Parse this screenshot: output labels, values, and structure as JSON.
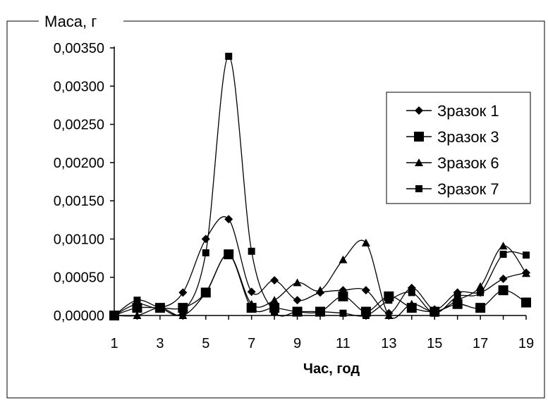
{
  "chart_data": {
    "type": "line",
    "title": "Маса, г",
    "xlabel": "Час, год",
    "ylabel": "",
    "ylim": [
      0,
      0.0035
    ],
    "xlim": [
      1,
      19
    ],
    "x": [
      1,
      2,
      3,
      4,
      5,
      6,
      7,
      8,
      9,
      10,
      11,
      12,
      13,
      14,
      15,
      16,
      17,
      18,
      19
    ],
    "x_ticks": [
      "1",
      "3",
      "5",
      "7",
      "9",
      "11",
      "13",
      "15",
      "17",
      "19"
    ],
    "y_ticks": [
      "0,00000",
      "0,00050",
      "0,00100",
      "0,00150",
      "0,00200",
      "0,00250",
      "0,00300",
      "0,00350"
    ],
    "grid": false,
    "legend_position": "right",
    "series": [
      {
        "name": "Зразок 1",
        "marker": "diamond",
        "marker_size": "small",
        "values": [
          0.0,
          0.00015,
          0.0001,
          0.0003,
          0.001,
          0.00126,
          0.00031,
          0.00046,
          0.0002,
          0.0003,
          0.00033,
          0.00033,
          3e-05,
          0.00036,
          8e-05,
          0.0003,
          0.0003,
          0.00048,
          0.00056
        ]
      },
      {
        "name": "Зразок 3",
        "marker": "square",
        "marker_size": "large",
        "values": [
          0.0,
          0.0001,
          0.0001,
          0.0001,
          0.0003,
          0.0008,
          0.0001,
          0.0001,
          5e-05,
          5e-05,
          0.00025,
          5e-05,
          0.00025,
          0.0001,
          5e-05,
          0.00015,
          0.0001,
          0.00033,
          0.00017
        ]
      },
      {
        "name": "Зразок 6",
        "marker": "triangle",
        "marker_size": "small",
        "values": [
          0.0,
          0.0,
          0.0001,
          0.0,
          0.0003,
          0.0008,
          0.00015,
          0.0002,
          0.00043,
          0.00033,
          0.00073,
          0.00095,
          0.0,
          0.00015,
          5e-05,
          0.0002,
          0.00038,
          0.00091,
          0.00055
        ]
      },
      {
        "name": "Зразок 7",
        "marker": "square",
        "marker_size": "small",
        "values": [
          0.0,
          0.0002,
          0.0001,
          5e-05,
          0.00082,
          0.00339,
          0.00084,
          5e-05,
          5e-05,
          5e-05,
          3e-05,
          0.0,
          0.0002,
          0.0003,
          3e-05,
          0.00025,
          0.0003,
          0.0008,
          0.00079
        ]
      }
    ]
  }
}
